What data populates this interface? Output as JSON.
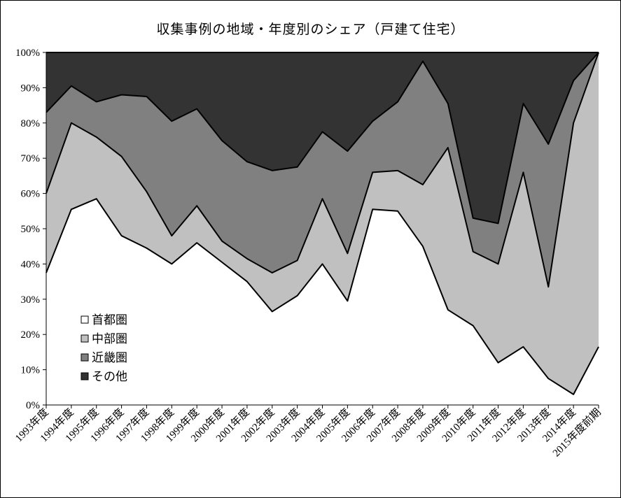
{
  "chart_data": {
    "type": "area",
    "stacked": true,
    "title": "収集事例の地域・年度別のシェア（戸建て住宅）",
    "xlabel": "",
    "ylabel": "",
    "ylim": [
      0,
      100
    ],
    "y_ticks": [
      "0%",
      "10%",
      "20%",
      "30%",
      "40%",
      "50%",
      "60%",
      "70%",
      "80%",
      "90%",
      "100%"
    ],
    "categories": [
      "1993年度",
      "1994年度",
      "1995年度",
      "1996年度",
      "1997年度",
      "1998年度",
      "1999年度",
      "2000年度",
      "2001年度",
      "2002年度",
      "2003年度",
      "2004年度",
      "2005年度",
      "2006年度",
      "2007年度",
      "2008年度",
      "2009年度",
      "2010年度",
      "2011年度",
      "2012年度",
      "2013年度",
      "2014年度",
      "2015年度前期"
    ],
    "grid": false,
    "legend_position": "lower-left",
    "series": [
      {
        "name": "首都圏",
        "color": "#ffffff",
        "values": [
          37.5,
          55.5,
          58.5,
          48,
          44.5,
          40,
          46,
          40.5,
          35,
          26.5,
          31,
          40,
          29.5,
          55.5,
          55,
          45,
          27,
          22.5,
          12,
          16.5,
          7.5,
          3,
          16.5
        ]
      },
      {
        "name": "中部圏",
        "color": "#c0c0c0",
        "values": [
          22.5,
          24.5,
          17.5,
          22.5,
          16,
          8,
          10.5,
          6,
          6.5,
          11,
          10,
          18.5,
          13.5,
          10.5,
          11.5,
          17.5,
          46,
          21,
          28,
          49.5,
          26,
          77,
          83.5
        ]
      },
      {
        "name": "近畿圏",
        "color": "#808080",
        "values": [
          23,
          10.5,
          10,
          17.5,
          27,
          32.5,
          27.5,
          28.5,
          27.5,
          29,
          26.5,
          19,
          29,
          14.5,
          19.5,
          35,
          12.5,
          9.5,
          11.5,
          19.5,
          40.5,
          12,
          0
        ]
      },
      {
        "name": "その他",
        "color": "#333333",
        "values": [
          17,
          9.5,
          14,
          12,
          12.5,
          19.5,
          16,
          25,
          31,
          33.5,
          32.5,
          22.5,
          28,
          19.5,
          14,
          2.5,
          14.5,
          47,
          48.5,
          14.5,
          26,
          8,
          0
        ]
      }
    ]
  }
}
